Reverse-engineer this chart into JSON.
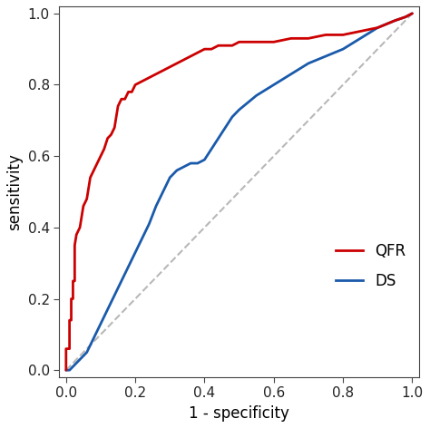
{
  "title": "",
  "xlabel": "1 - specificity",
  "ylabel": "sensitivity",
  "xlim": [
    -0.02,
    1.02
  ],
  "ylim": [
    -0.02,
    1.02
  ],
  "xticks": [
    0.0,
    0.2,
    0.4,
    0.6,
    0.8,
    1.0
  ],
  "yticks": [
    0.0,
    0.2,
    0.4,
    0.6,
    0.8,
    1.0
  ],
  "background_color": "#ffffff",
  "qfr_color": "#cc0000",
  "ds_color": "#1a5aab",
  "diag_color": "#b8b8b8",
  "legend_labels": [
    "QFR",
    "DS"
  ],
  "qfr_x": [
    0.0,
    0.0,
    0.01,
    0.01,
    0.015,
    0.015,
    0.02,
    0.02,
    0.025,
    0.025,
    0.03,
    0.04,
    0.05,
    0.06,
    0.07,
    0.08,
    0.09,
    0.1,
    0.11,
    0.12,
    0.13,
    0.14,
    0.15,
    0.16,
    0.17,
    0.18,
    0.19,
    0.2,
    0.22,
    0.24,
    0.26,
    0.28,
    0.3,
    0.32,
    0.34,
    0.36,
    0.38,
    0.4,
    0.42,
    0.44,
    0.46,
    0.48,
    0.5,
    0.55,
    0.6,
    0.65,
    0.7,
    0.75,
    0.8,
    0.85,
    0.9,
    0.95,
    0.98,
    1.0
  ],
  "qfr_y": [
    0.0,
    0.06,
    0.06,
    0.14,
    0.14,
    0.2,
    0.2,
    0.25,
    0.25,
    0.35,
    0.38,
    0.4,
    0.46,
    0.48,
    0.54,
    0.56,
    0.58,
    0.6,
    0.62,
    0.65,
    0.66,
    0.68,
    0.74,
    0.76,
    0.76,
    0.78,
    0.78,
    0.8,
    0.81,
    0.82,
    0.83,
    0.84,
    0.85,
    0.86,
    0.87,
    0.88,
    0.89,
    0.9,
    0.9,
    0.91,
    0.91,
    0.91,
    0.92,
    0.92,
    0.92,
    0.93,
    0.93,
    0.94,
    0.94,
    0.95,
    0.96,
    0.98,
    0.99,
    1.0
  ],
  "ds_x": [
    0.0,
    0.01,
    0.02,
    0.03,
    0.04,
    0.05,
    0.06,
    0.07,
    0.08,
    0.09,
    0.1,
    0.12,
    0.14,
    0.16,
    0.18,
    0.2,
    0.22,
    0.24,
    0.26,
    0.28,
    0.3,
    0.32,
    0.34,
    0.36,
    0.38,
    0.4,
    0.42,
    0.44,
    0.46,
    0.48,
    0.5,
    0.55,
    0.6,
    0.65,
    0.7,
    0.75,
    0.8,
    0.85,
    0.9,
    0.95,
    0.98,
    1.0
  ],
  "ds_y": [
    0.0,
    0.0,
    0.01,
    0.02,
    0.03,
    0.04,
    0.05,
    0.07,
    0.09,
    0.11,
    0.13,
    0.17,
    0.21,
    0.25,
    0.29,
    0.33,
    0.37,
    0.41,
    0.46,
    0.5,
    0.54,
    0.56,
    0.57,
    0.58,
    0.58,
    0.59,
    0.62,
    0.65,
    0.68,
    0.71,
    0.73,
    0.77,
    0.8,
    0.83,
    0.86,
    0.88,
    0.9,
    0.93,
    0.96,
    0.98,
    0.99,
    1.0
  ],
  "line_width": 2.0,
  "font_size": 12,
  "tick_font_size": 11,
  "legend_font_size": 12
}
